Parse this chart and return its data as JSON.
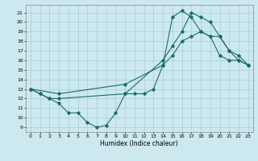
{
  "xlabel": "Humidex (Indice chaleur)",
  "bg_color": "#cce9ef",
  "line_color": "#1a6b6b",
  "grid_color": "#b0d8e0",
  "xlim": [
    -0.5,
    23.5
  ],
  "ylim": [
    8.5,
    21.8
  ],
  "yticks": [
    9,
    10,
    11,
    12,
    13,
    14,
    15,
    16,
    17,
    18,
    19,
    20,
    21
  ],
  "xticks": [
    0,
    1,
    2,
    3,
    4,
    5,
    6,
    7,
    8,
    9,
    10,
    11,
    12,
    13,
    14,
    15,
    16,
    17,
    18,
    19,
    20,
    21,
    22,
    23
  ],
  "line1_x": [
    0,
    1,
    2,
    3,
    4,
    5,
    6,
    7,
    8,
    9,
    10,
    11,
    12,
    13,
    14,
    15,
    16,
    17,
    18,
    19,
    20,
    21,
    22,
    23
  ],
  "line1_y": [
    13,
    12.5,
    12,
    11.5,
    10.5,
    10.5,
    9.5,
    9.0,
    9.2,
    10.5,
    12.5,
    12.5,
    12.5,
    13.0,
    15.5,
    20.5,
    21.2,
    20.5,
    19.0,
    18.5,
    16.5,
    16.0,
    16.0,
    15.5
  ],
  "line2_x": [
    0,
    1,
    2,
    3,
    10,
    14,
    15,
    16,
    17,
    18,
    19,
    20,
    21,
    22,
    23
  ],
  "line2_y": [
    13,
    12.5,
    12,
    12.0,
    12.5,
    16.0,
    17.5,
    19.0,
    21.0,
    20.5,
    20.0,
    18.5,
    17.0,
    16.0,
    15.5
  ],
  "line3_x": [
    0,
    3,
    10,
    14,
    15,
    16,
    17,
    18,
    19,
    20,
    21,
    22,
    23
  ],
  "line3_y": [
    13,
    12.5,
    13.5,
    15.5,
    16.5,
    18.0,
    18.5,
    19.0,
    18.5,
    18.5,
    17.0,
    16.5,
    15.5
  ]
}
